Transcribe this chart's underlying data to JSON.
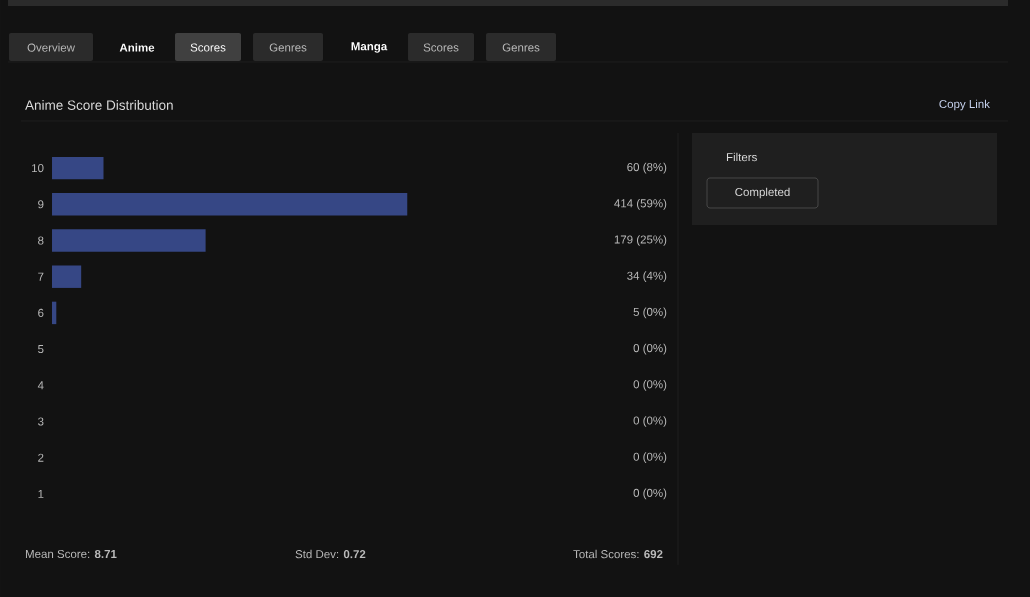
{
  "chart_data": {
    "type": "bar",
    "orientation": "horizontal",
    "title": "Anime Score Distribution",
    "categories": [
      "10",
      "9",
      "8",
      "7",
      "6",
      "5",
      "4",
      "3",
      "2",
      "1"
    ],
    "values": [
      60,
      414,
      179,
      34,
      5,
      0,
      0,
      0,
      0,
      0
    ],
    "value_labels": [
      "60 (8%)",
      "414 (59%)",
      "179 (25%)",
      "34 (4%)",
      "5 (0%)",
      "0 (0%)",
      "0 (0%)",
      "0 (0%)",
      "0 (0%)",
      "0 (0%)"
    ],
    "color": "#364785",
    "annotations": [
      "Overview",
      "Anime",
      "Scores",
      "Genres",
      "Manga",
      "Scores",
      "Genres",
      "Copy Link",
      "Filters",
      "Completed",
      "Mean Score: **8.71**",
      "Std Dev: **0.72**",
      "Total Scores: **692**"
    ]
  }
}
